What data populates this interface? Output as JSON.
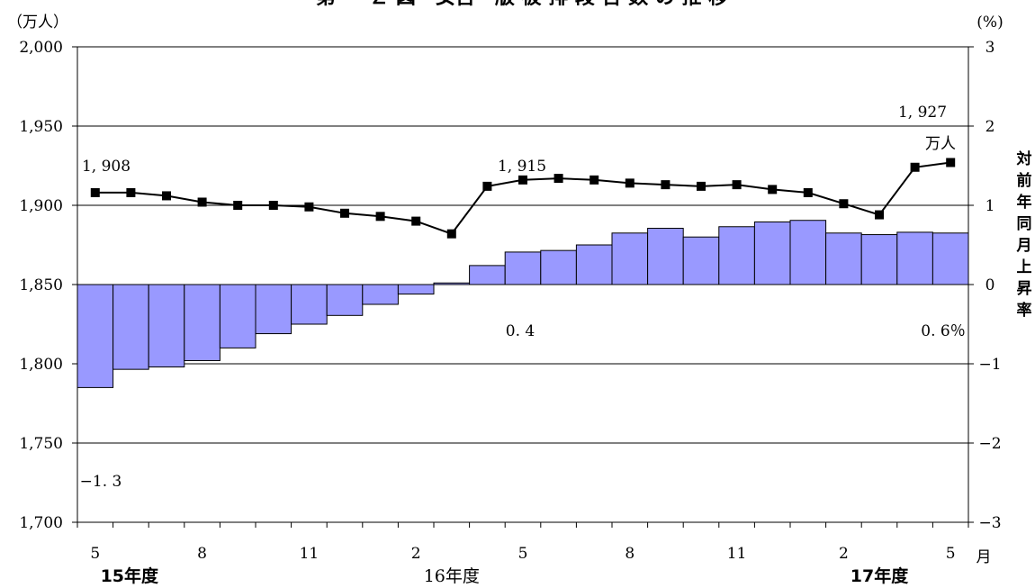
{
  "chart_data": {
    "type": "bar+line",
    "title_fragment": "第 ー Ｚ 図　女否　版 被 排 段 告 数 の 推 移",
    "left_axis": {
      "unit": "（万人）",
      "ylim": [
        1700,
        2000
      ],
      "ticks": [
        1700,
        1750,
        1800,
        1850,
        1900,
        1950,
        2000
      ],
      "tick_labels": [
        "1,700",
        "1,750",
        "1,800",
        "1,850",
        "1,900",
        "1,950",
        "2,000"
      ]
    },
    "right_axis": {
      "unit": "(%)",
      "ylim": [
        -3,
        3
      ],
      "ticks": [
        -3,
        -2,
        -1,
        0,
        1,
        2,
        3
      ],
      "tick_labels": [
        "−3",
        "−2",
        "−1",
        "0",
        "1",
        "2",
        "3"
      ],
      "title_chars": [
        "対",
        "前",
        "年",
        "同",
        "月",
        "上",
        "昇",
        "率"
      ]
    },
    "x_axis": {
      "month_labels": [
        {
          "index": 0,
          "text": "5"
        },
        {
          "index": 3,
          "text": "8"
        },
        {
          "index": 6,
          "text": "11"
        },
        {
          "index": 9,
          "text": "2"
        },
        {
          "index": 12,
          "text": "5"
        },
        {
          "index": 15,
          "text": "8"
        },
        {
          "index": 18,
          "text": "11"
        },
        {
          "index": 21,
          "text": "2"
        },
        {
          "index": 24,
          "text": "5"
        }
      ],
      "month_unit": "月",
      "year_labels": [
        {
          "index": 0,
          "text": "15年度",
          "bold": true
        },
        {
          "index": 10,
          "text": "16年度",
          "bold": false
        },
        {
          "index": 22,
          "text": "17年度",
          "bold": true
        }
      ]
    },
    "line_series": {
      "unit": "万人",
      "values": [
        1908,
        1908,
        1906,
        1902,
        1900,
        1900,
        1899,
        1895,
        1893,
        1890,
        1882,
        1912,
        1916,
        1917,
        1916,
        1914,
        1913,
        1912,
        1913,
        1910,
        1908,
        1901,
        1894,
        1924,
        1927
      ]
    },
    "bar_series": {
      "unit": "%",
      "values": [
        -1.3,
        -1.07,
        -1.04,
        -0.96,
        -0.8,
        -0.62,
        -0.5,
        -0.39,
        -0.25,
        -0.12,
        0.02,
        0.24,
        0.41,
        0.43,
        0.5,
        0.65,
        0.71,
        0.6,
        0.73,
        0.79,
        0.81,
        0.65,
        0.63,
        0.66,
        0.65
      ]
    },
    "annotations": [
      {
        "text": "1, 908"
      },
      {
        "text": "1, 915"
      },
      {
        "text": "1, 927"
      },
      {
        "text": "万人"
      },
      {
        "text": "0. 4"
      },
      {
        "text": "0. 6％"
      },
      {
        "text": "−1. 3"
      }
    ],
    "colors": {
      "bar_fill": "#9999ff",
      "bar_stroke": "#000000",
      "line": "#000000",
      "marker": "#000000",
      "grid": "#000000"
    }
  }
}
